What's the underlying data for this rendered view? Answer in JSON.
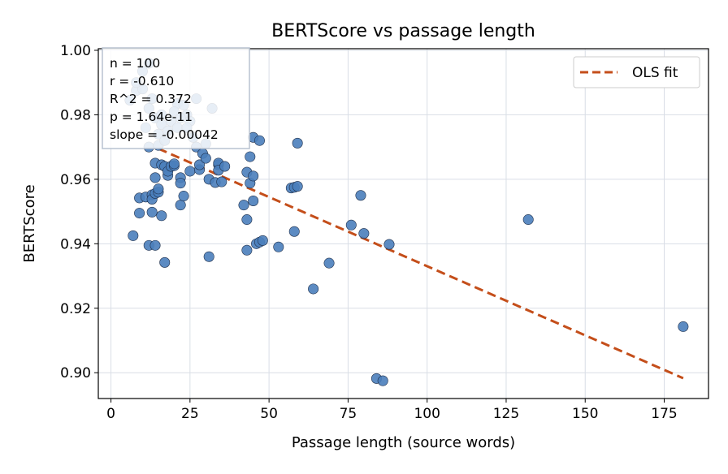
{
  "chart_data": {
    "type": "scatter",
    "title": "BERTScore vs passage length",
    "xlabel": "Passage length (source words)",
    "ylabel": "BERTScore",
    "xlim": [
      -4,
      189
    ],
    "ylim": [
      0.892,
      1.0005
    ],
    "xticks": [
      0,
      25,
      50,
      75,
      100,
      125,
      150,
      175
    ],
    "yticks": [
      0.9,
      0.92,
      0.94,
      0.96,
      0.98,
      1.0
    ],
    "ytick_labels": [
      "0.90",
      "0.92",
      "0.94",
      "0.96",
      "0.98",
      "1.00"
    ],
    "grid": true,
    "legend_position": "top-right",
    "colors": {
      "points": "#4a7ebb",
      "points_edge": "#1f2f4a",
      "fit": "#c44e1a",
      "grid": "#d9dee6"
    },
    "stats_box": [
      "n = 100",
      "r = -0.610",
      "R^2 = 0.372",
      "p = 1.64e-11",
      "slope = -0.00042"
    ],
    "series": [
      {
        "kind": "points",
        "x": [
          6,
          7,
          8,
          9,
          9,
          10,
          11,
          12,
          12,
          13,
          13,
          13,
          14,
          14,
          14,
          14,
          15,
          15,
          15,
          16,
          16,
          17,
          17,
          18,
          18,
          19,
          20,
          20,
          21,
          22,
          22,
          22,
          23,
          24,
          25,
          25,
          27,
          28,
          28,
          29,
          30,
          31,
          31,
          32,
          33,
          34,
          34,
          34,
          35,
          36,
          42,
          43,
          43,
          43,
          44,
          44,
          45,
          45,
          45,
          46,
          47,
          47,
          48,
          53,
          57,
          58,
          58,
          59,
          59,
          64,
          69,
          76,
          79,
          80,
          84,
          86,
          88,
          132,
          181,
          10,
          11,
          12,
          13,
          14,
          15,
          16,
          16,
          17,
          18,
          19,
          20,
          21,
          22,
          23,
          24,
          26,
          27,
          30,
          12,
          8
        ],
        "y": [
          0.9845,
          0.9425,
          0.9875,
          0.9495,
          0.9542,
          0.9935,
          0.9545,
          0.9395,
          0.97,
          0.9552,
          0.9498,
          0.9538,
          0.9395,
          0.965,
          0.9605,
          0.9556,
          0.956,
          0.957,
          0.9705,
          0.9645,
          0.9487,
          0.9342,
          0.964,
          0.9612,
          0.9625,
          0.964,
          0.9642,
          0.9648,
          0.9835,
          0.9605,
          0.9588,
          0.952,
          0.9548,
          0.98,
          0.9625,
          0.978,
          0.97,
          0.963,
          0.9645,
          0.968,
          0.9665,
          0.936,
          0.96,
          0.982,
          0.959,
          0.9645,
          0.965,
          0.9628,
          0.9592,
          0.964,
          0.952,
          0.9475,
          0.938,
          0.9622,
          0.967,
          0.9588,
          0.961,
          0.973,
          0.9533,
          0.94,
          0.972,
          0.9405,
          0.941,
          0.939,
          0.9573,
          0.9438,
          0.9575,
          0.9712,
          0.9578,
          0.926,
          0.934,
          0.9458,
          0.955,
          0.9432,
          0.8982,
          0.8975,
          0.9398,
          0.9475,
          0.9143,
          0.988,
          0.976,
          0.982,
          0.985,
          0.979,
          0.974,
          0.977,
          0.98,
          0.972,
          0.975,
          0.978,
          0.981,
          0.976,
          0.979,
          0.983,
          0.976,
          0.973,
          0.985,
          0.971,
          0.996,
          0.99
        ]
      },
      {
        "kind": "line",
        "name": "OLS fit",
        "x": [
          15,
          181
        ],
        "y": [
          0.9695,
          0.8983
        ]
      }
    ]
  }
}
